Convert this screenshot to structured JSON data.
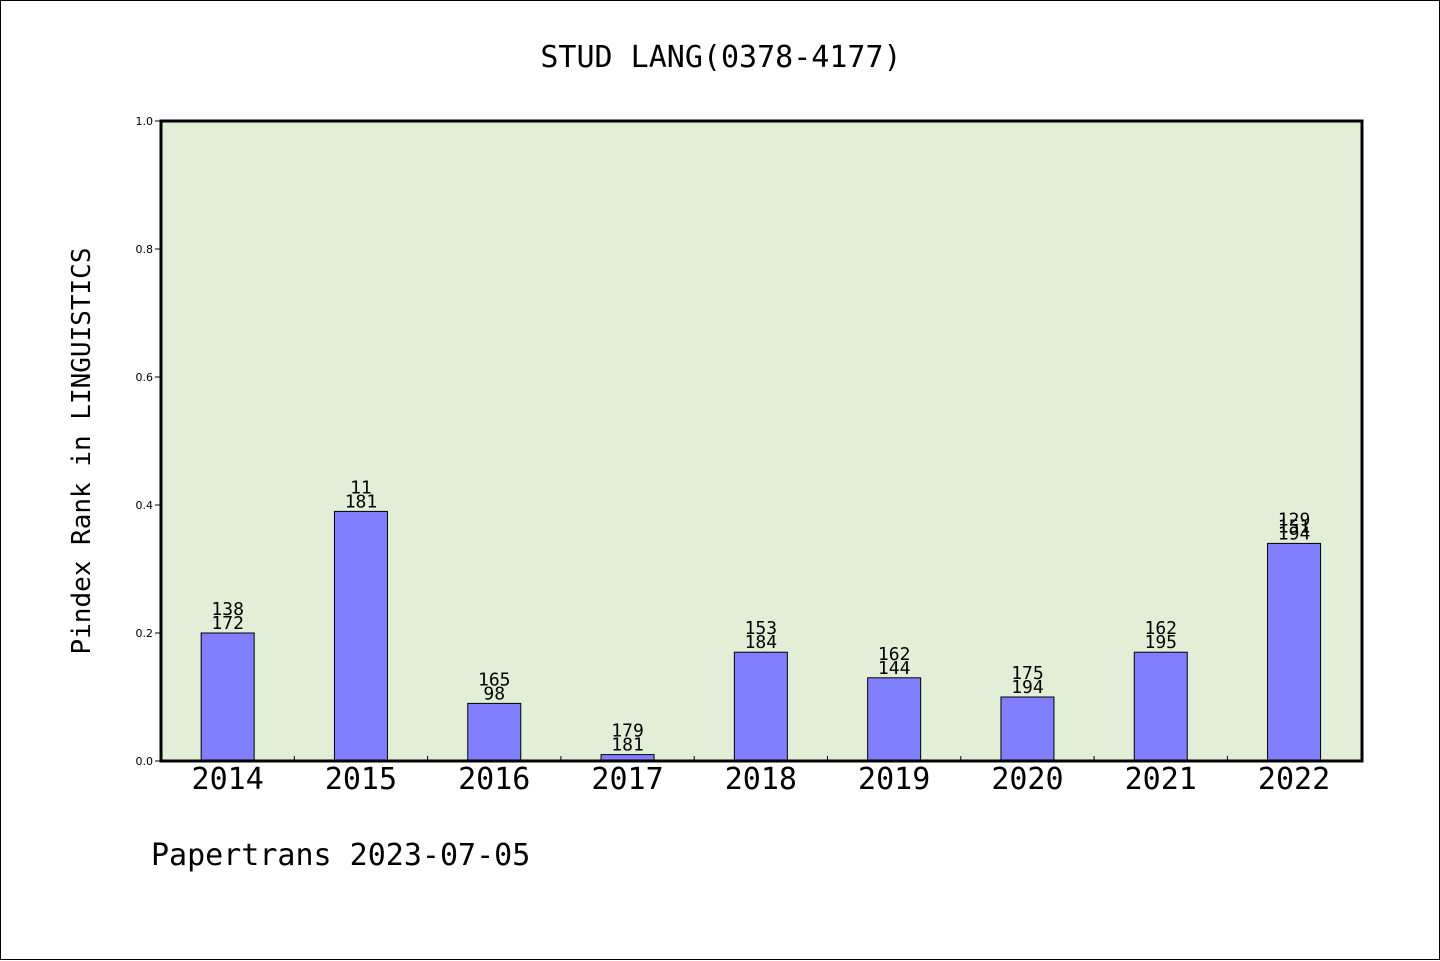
{
  "chart_data": {
    "type": "bar",
    "title": "STUD LANG(0378-4177)",
    "ylabel": "Pindex Rank in LINGUISTICS",
    "xlabel": "",
    "categories": [
      "2014",
      "2015",
      "2016",
      "2017",
      "2018",
      "2019",
      "2020",
      "2021",
      "2022"
    ],
    "values": [
      0.2,
      0.39,
      0.09,
      0.01,
      0.17,
      0.13,
      0.1,
      0.17,
      0.34
    ],
    "labels_top": [
      "138",
      "11",
      "165",
      "179",
      "153",
      "162",
      "175",
      "162",
      "129"
    ],
    "labels_bottom": [
      "172",
      "181",
      "98",
      "181",
      "184",
      "144",
      "194",
      "195",
      "194"
    ],
    "extra_overlap_labels": [
      null,
      null,
      null,
      null,
      null,
      null,
      null,
      null,
      "151"
    ],
    "ylim": [
      0,
      1.0
    ],
    "yticks": [
      "0.0",
      "0.2",
      "0.4",
      "0.6",
      "0.8",
      "1.0"
    ],
    "grid": false,
    "colors": {
      "plot_background": "#e2efd6",
      "bar_fill": "#8080ff",
      "bar_stroke": "#000000"
    }
  },
  "footer": {
    "credit": "Papertrans 2023-07-05"
  }
}
